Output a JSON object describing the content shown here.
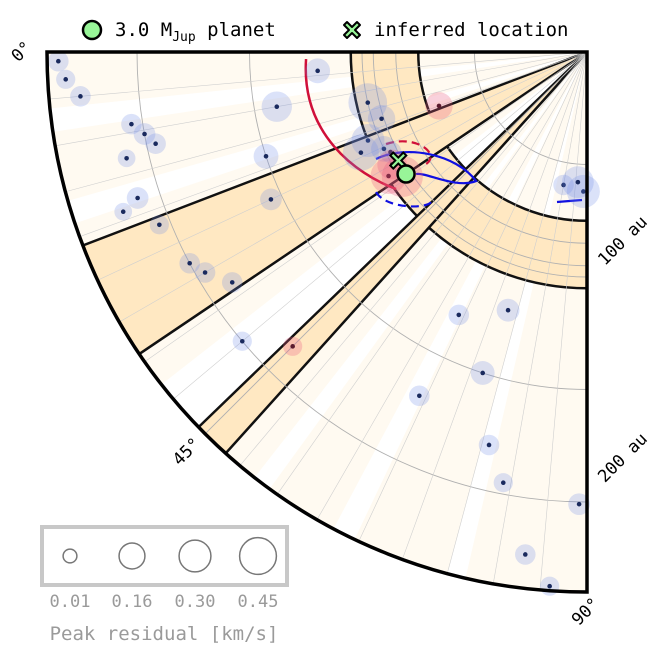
{
  "legend_top": {
    "planet_label": "3.0 M",
    "planet_sub": "Jup",
    "planet_suffix": " planet",
    "planet_color": "#98f598",
    "inferred_label": "inferred location"
  },
  "angle_labels": [
    "0°",
    "45°",
    "90°"
  ],
  "radius_labels": [
    "100 au",
    "200 au"
  ],
  "size_legend": {
    "ticks": [
      "0.01",
      "0.16",
      "0.30",
      "0.45"
    ],
    "title": "Peak residual [km/s]"
  },
  "chart_data": {
    "type": "scatter",
    "coordinate_system": "polar",
    "theta_range_deg": [
      0,
      90
    ],
    "r_range_au": [
      0,
      240
    ],
    "r_ticks_au": [
      50,
      100,
      150,
      200
    ],
    "radius_labels_au": [
      100,
      200
    ],
    "gap_annulus_au": [
      75,
      105
    ],
    "gap_wedges_deg": [
      [
        21,
        34
      ],
      [
        44,
        48
      ]
    ],
    "faint_rings_au": [
      85,
      95
    ],
    "planet": {
      "label": "3.0 MJup planet",
      "r_au": 97,
      "theta_deg": 34
    },
    "inferred_location": {
      "label": "inferred location",
      "r_au": 100,
      "theta_deg": 33
    },
    "size_legend_km_s": [
      0.01,
      0.16,
      0.3,
      0.45
    ],
    "blue_points": [
      {
        "r": 235,
        "t": 1.0,
        "v": 0.05
      },
      {
        "r": 232,
        "t": 3.0,
        "v": 0.04
      },
      {
        "r": 226,
        "t": 5.0,
        "v": 0.05
      },
      {
        "r": 120,
        "t": 4.0,
        "v": 0.09
      },
      {
        "r": 205,
        "t": 9.0,
        "v": 0.05
      },
      {
        "r": 200,
        "t": 10.5,
        "v": 0.06
      },
      {
        "r": 196,
        "t": 12.0,
        "v": 0.05
      },
      {
        "r": 210,
        "t": 13.0,
        "v": 0.03
      },
      {
        "r": 210,
        "t": 18.0,
        "v": 0.06
      },
      {
        "r": 218,
        "t": 19.0,
        "v": 0.03
      },
      {
        "r": 205,
        "t": 22.0,
        "v": 0.04
      },
      {
        "r": 140,
        "t": 10.0,
        "v": 0.16
      },
      {
        "r": 150,
        "t": 18.0,
        "v": 0.09
      },
      {
        "r": 155,
        "t": 25.0,
        "v": 0.06
      },
      {
        "r": 96,
        "t": 18.0,
        "v": 0.12
      },
      {
        "r": 105,
        "t": 22.0,
        "v": 0.2
      },
      {
        "r": 110,
        "t": 24.0,
        "v": 0.25
      },
      {
        "r": 100,
        "t": 25.5,
        "v": 0.1
      },
      {
        "r": 98,
        "t": 27.0,
        "v": 0.06
      },
      {
        "r": 200,
        "t": 28.0,
        "v": 0.05
      },
      {
        "r": 196,
        "t": 30.0,
        "v": 0.05
      },
      {
        "r": 188,
        "t": 33.0,
        "v": 0.05
      },
      {
        "r": 100,
        "t": 13.0,
        "v": 0.3
      },
      {
        "r": 200,
        "t": 40.0,
        "v": 0.04
      },
      {
        "r": 130,
        "t": 64.0,
        "v": 0.05
      },
      {
        "r": 170,
        "t": 64.0,
        "v": 0.05
      },
      {
        "r": 120,
        "t": 73.0,
        "v": 0.07
      },
      {
        "r": 150,
        "t": 72.0,
        "v": 0.08
      },
      {
        "r": 180,
        "t": 76.0,
        "v": 0.05
      },
      {
        "r": 195,
        "t": 79.0,
        "v": 0.04
      },
      {
        "r": 225,
        "t": 83.0,
        "v": 0.05
      },
      {
        "r": 238,
        "t": 86.0,
        "v": 0.04
      },
      {
        "r": 201,
        "t": 89.0,
        "v": 0.06
      },
      {
        "r": 60,
        "t": 80.0,
        "v": 0.05
      },
      {
        "r": 62,
        "t": 88.5,
        "v": 0.2
      },
      {
        "r": 58,
        "t": 86.0,
        "v": 0.18
      }
    ],
    "pink_points": [
      {
        "r": 99,
        "t": 34.0,
        "v": 0.35
      },
      {
        "r": 104,
        "t": 32.0,
        "v": 0.25
      },
      {
        "r": 100,
        "t": 30.0,
        "v": 0.15
      },
      {
        "r": 70,
        "t": 20.0,
        "v": 0.12
      },
      {
        "r": 185,
        "t": 45.0,
        "v": 0.04
      }
    ]
  }
}
